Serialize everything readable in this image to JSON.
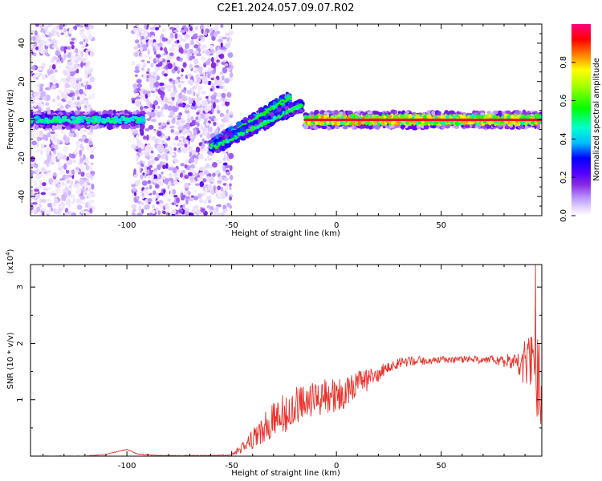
{
  "title": "C2E1.2024.057.09.07.R02",
  "chart_data": [
    {
      "type": "heatmap",
      "xlabel": "Height of straight line (km)",
      "ylabel": "Frequency (Hz)",
      "xlim": [
        -146,
        98
      ],
      "ylim": [
        -50,
        50
      ],
      "xticks": [
        -100,
        -50,
        0,
        50
      ],
      "yticks": [
        -40,
        -20,
        0,
        20,
        40
      ],
      "colorbar": {
        "label": "Normalized spectral amplitude",
        "range": [
          0,
          1
        ],
        "ticks": [
          "0.0",
          "0.2",
          "0.4",
          "0.6",
          "0.8"
        ],
        "colormap": [
          "#ffffff",
          "#e6d6ff",
          "#b48cff",
          "#8a2be2",
          "#5500ff",
          "#0000ff",
          "#00bfff",
          "#00ffcc",
          "#00ff00",
          "#aaff00",
          "#ffff00",
          "#ff8000",
          "#ff0000",
          "#ff0080"
        ]
      },
      "features": [
        {
          "name": "carrier",
          "x_range": [
            -146,
            -92
          ],
          "frequency": 0,
          "amplitude": 0.4
        },
        {
          "name": "carrier",
          "x_range": [
            -15,
            98
          ],
          "frequency": 0,
          "amplitude": 0.95
        },
        {
          "name": "branch",
          "x_range": [
            -60,
            -22
          ],
          "frequency_range": [
            -14,
            12
          ],
          "amplitude": 0.4
        },
        {
          "name": "branch",
          "x_range": [
            -58,
            -16
          ],
          "frequency_range": [
            -14,
            8
          ],
          "amplitude": 0.35
        },
        {
          "name": "noise",
          "x_range": [
            -146,
            -116
          ],
          "frequency_range": [
            -50,
            50
          ],
          "amplitude": 0.15
        },
        {
          "name": "noise",
          "x_range": [
            -97,
            -50
          ],
          "frequency_range": [
            -50,
            50
          ],
          "amplitude": 0.2
        }
      ]
    },
    {
      "type": "line",
      "xlabel": "Height of straight line (km)",
      "ylabel": "SNR (10 * v/v)",
      "y_multiplier": "(x10",
      "y_multiplier_exp": "4",
      "y_multiplier_close": ")",
      "xlim": [
        -146,
        98
      ],
      "ylim": [
        0,
        3.4
      ],
      "xticks": [
        -100,
        -50,
        0,
        50
      ],
      "yticks": [
        1,
        2,
        3
      ],
      "series": [
        {
          "color": "#e8332c",
          "points": [
            [
              -146,
              0.0
            ],
            [
              -120,
              0.0
            ],
            [
              -110,
              0.03
            ],
            [
              -100,
              0.12
            ],
            [
              -95,
              0.04
            ],
            [
              -85,
              0.01
            ],
            [
              -60,
              0.01
            ],
            [
              -50,
              0.02
            ],
            [
              -45,
              0.15
            ],
            [
              -40,
              0.3
            ],
            [
              -35,
              0.5
            ],
            [
              -30,
              0.65
            ],
            [
              -25,
              0.8
            ],
            [
              -20,
              0.95
            ],
            [
              -15,
              0.9
            ],
            [
              -10,
              1.0
            ],
            [
              -5,
              1.1
            ],
            [
              0,
              1.05
            ],
            [
              5,
              1.15
            ],
            [
              10,
              1.3
            ],
            [
              15,
              1.35
            ],
            [
              20,
              1.45
            ],
            [
              25,
              1.6
            ],
            [
              30,
              1.65
            ],
            [
              35,
              1.68
            ],
            [
              40,
              1.7
            ],
            [
              45,
              1.68
            ],
            [
              50,
              1.72
            ],
            [
              55,
              1.7
            ],
            [
              60,
              1.72
            ],
            [
              65,
              1.72
            ],
            [
              70,
              1.7
            ],
            [
              75,
              1.72
            ],
            [
              80,
              1.68
            ],
            [
              85,
              1.7
            ],
            [
              90,
              1.65
            ],
            [
              93,
              1.6
            ],
            [
              96,
              1.3
            ],
            [
              98,
              1.0
            ]
          ],
          "noise_level": [
            [
              -146,
              0.005
            ],
            [
              -50,
              0.01
            ],
            [
              -40,
              0.18
            ],
            [
              -25,
              0.4
            ],
            [
              -10,
              0.35
            ],
            [
              10,
              0.25
            ],
            [
              25,
              0.1
            ],
            [
              50,
              0.06
            ],
            [
              75,
              0.07
            ],
            [
              85,
              0.15
            ],
            [
              92,
              0.6
            ],
            [
              98,
              0.9
            ]
          ],
          "peak": [
            95,
            3.4
          ]
        }
      ]
    }
  ]
}
